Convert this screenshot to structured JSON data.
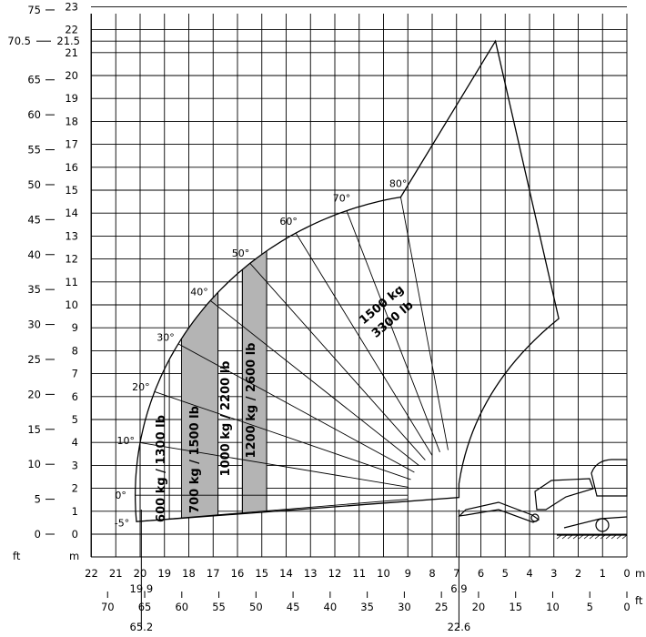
{
  "chart_data": {
    "type": "area",
    "x_axis": {
      "unit_m": "m",
      "unit_ft": "ft",
      "m_ticks": [
        22,
        21,
        20,
        19,
        18,
        17,
        16,
        15,
        14,
        13,
        12,
        11,
        10,
        9,
        8,
        7,
        6,
        5,
        4,
        3,
        2,
        1,
        0
      ],
      "ft_ticks": [
        70,
        65,
        60,
        55,
        50,
        45,
        40,
        35,
        30,
        25,
        20,
        15,
        10,
        5,
        0
      ],
      "markers": [
        {
          "m": 20,
          "m_text": "19.9",
          "ft_text": "65.2"
        },
        {
          "m": 6.9,
          "m_text": "6.9",
          "ft_text": "22.6"
        }
      ],
      "xlim_m": [
        22.6,
        0
      ]
    },
    "y_axis": {
      "unit_m": "m",
      "unit_ft": "ft",
      "m_ticks": [
        0,
        1,
        2,
        3,
        4,
        5,
        6,
        7,
        8,
        9,
        10,
        11,
        12,
        13,
        14,
        15,
        16,
        17,
        18,
        19,
        20,
        21,
        22,
        23
      ],
      "ft_ticks": [
        0,
        5,
        10,
        15,
        20,
        25,
        30,
        35,
        40,
        45,
        50,
        55,
        60,
        65,
        75
      ],
      "extra_m_label": "21.5",
      "extra_ft_label": "70.5",
      "extra_m_value": 21.5,
      "ylim_m": [
        -0.6,
        23
      ]
    },
    "grid": true,
    "boom_pivot_m": [
      7.0,
      1.7
    ],
    "angles": [
      {
        "label": "-5°",
        "deg": -5
      },
      {
        "label": "0°",
        "deg": 0
      },
      {
        "label": "10°",
        "deg": 10
      },
      {
        "label": "20°",
        "deg": 20
      },
      {
        "label": "30°",
        "deg": 30
      },
      {
        "label": "40°",
        "deg": 40
      },
      {
        "label": "50°",
        "deg": 50
      },
      {
        "label": "60°",
        "deg": 60
      },
      {
        "label": "70°",
        "deg": 70
      },
      {
        "label": "80°",
        "deg": 80
      }
    ],
    "load_zones": [
      {
        "label": "600 kg / 1300 lb",
        "x_from_m": 20.0,
        "x_to_m": 18.8,
        "shaded": false
      },
      {
        "label": "700 kg / 1500 lb",
        "x_from_m": 18.3,
        "x_to_m": 16.8,
        "shaded": true
      },
      {
        "label": "1000 kg / 2200 lb",
        "x_from_m": 16.8,
        "x_to_m": 15.8,
        "shaded": false
      },
      {
        "label": "1200 kg / 2600 lb",
        "x_from_m": 15.8,
        "x_to_m": 14.8,
        "shaded": true
      },
      {
        "label_line1": "1500 kg",
        "label_line2": "3300 lb",
        "x_from_m": 14.8,
        "x_to_m": 2.8,
        "shaded": false
      }
    ],
    "envelope_max_reach_m": 19.9,
    "envelope_max_height_m": 21.5
  },
  "colors": {
    "background": "#ffffff",
    "line": "#000000",
    "shade": "#b4b4b4"
  }
}
